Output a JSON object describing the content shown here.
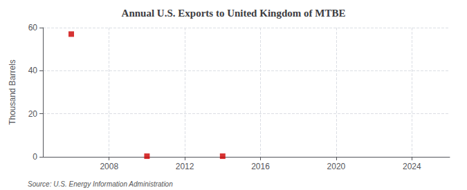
{
  "chart_data": {
    "type": "scatter",
    "title": "Annual U.S. Exports to United Kingdom of MTBE",
    "ylabel": "Thousand Barrels",
    "annotations": [
      "Source: U.S. Energy Information Administration"
    ],
    "x": [
      2006,
      2010,
      2014
    ],
    "values": [
      57,
      0.3,
      0.3
    ],
    "color": "#cc0000",
    "marker": "square",
    "xlim": [
      2004.5,
      2026
    ],
    "ylim": [
      0,
      60
    ],
    "xticks": [
      2008,
      2012,
      2016,
      2020,
      2024
    ],
    "yticks": [
      0,
      20,
      40,
      60
    ],
    "grid": true
  }
}
